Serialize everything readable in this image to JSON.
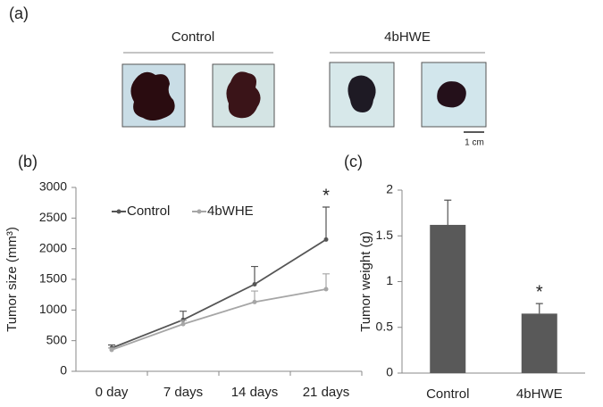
{
  "panel_a": {
    "label": "(a)",
    "groups": [
      "Control",
      "4bHWE"
    ],
    "scale_bar": "1 cm"
  },
  "chart_data": [
    {
      "type": "line",
      "panel_label": "(b)",
      "y_label": "Tumor size (mm³)",
      "categories": [
        "0 day",
        "7 days",
        "14 days",
        "21 days"
      ],
      "series": [
        {
          "name": "Control",
          "color": "#555555",
          "values": [
            380,
            840,
            1420,
            2150
          ],
          "errors": [
            50,
            140,
            290,
            530
          ]
        },
        {
          "name": "4bWHE",
          "color": "#a6a6a6",
          "values": [
            350,
            770,
            1130,
            1340
          ],
          "errors": [
            30,
            60,
            180,
            250
          ]
        }
      ],
      "ylim": [
        0,
        3000
      ],
      "yticks": [
        0,
        500,
        1000,
        1500,
        2000,
        2500,
        3000
      ],
      "annotations": [
        "*"
      ],
      "legend": "top-left"
    },
    {
      "type": "bar",
      "panel_label": "(c)",
      "y_label": "Tumor weight (g)",
      "categories": [
        "Control",
        "4bHWE"
      ],
      "color": "#595959",
      "values": [
        1.62,
        0.65
      ],
      "errors": [
        0.27,
        0.11
      ],
      "ylim": [
        0,
        2
      ],
      "yticks": [
        0,
        0.5,
        1,
        1.5,
        2
      ],
      "annotations": [
        "*"
      ]
    }
  ]
}
